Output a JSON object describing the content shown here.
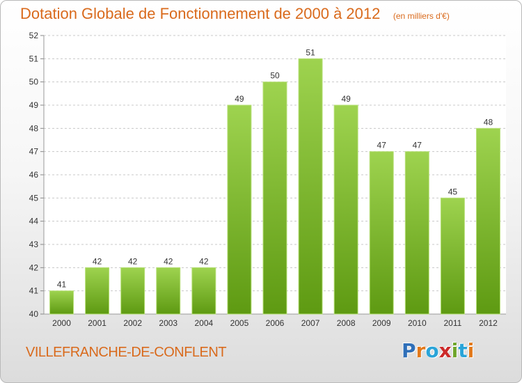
{
  "header": {
    "title": "Dotation Globale de Fonctionnement de 2000 à 2012",
    "unit": "(en milliers d'€)"
  },
  "footer": {
    "commune": "VILLEFRANCHE-DE-CONFLENT",
    "logo": "Proxiti",
    "logo_colors": [
      "#2f6fb8",
      "#e2791b",
      "#2aa4d8",
      "#cc2a2a",
      "#6fa52a",
      "#2aa4d8",
      "#e2791b"
    ]
  },
  "colors": {
    "bar_top": "#9ed34f",
    "bar_bottom": "#5e9a12",
    "bar_edge": "#b8e07a",
    "grid": "#c8c8c8",
    "axis_text": "#333333"
  },
  "chart_data": {
    "type": "bar",
    "categories": [
      "2000",
      "2001",
      "2002",
      "2003",
      "2004",
      "2005",
      "2006",
      "2007",
      "2008",
      "2009",
      "2010",
      "2011",
      "2012"
    ],
    "values": [
      41,
      42,
      42,
      42,
      42,
      49,
      50,
      51,
      49,
      47,
      47,
      45,
      48
    ],
    "ylim": [
      40,
      52
    ],
    "yticks": [
      40,
      41,
      42,
      43,
      44,
      45,
      46,
      47,
      48,
      49,
      50,
      51,
      52
    ],
    "grid": true,
    "data_labels": true
  }
}
